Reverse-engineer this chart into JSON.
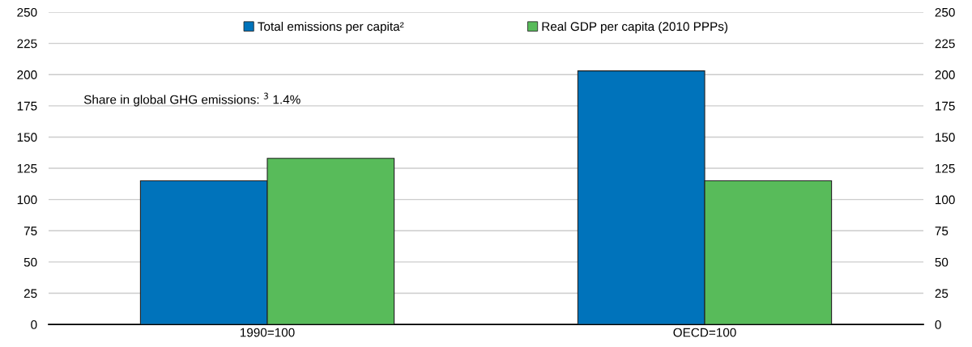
{
  "chart_data": {
    "type": "bar",
    "categories": [
      "1990=100",
      "OECD=100"
    ],
    "series": [
      {
        "name": "Total emissions per capita²",
        "color": "#0073bb",
        "values": [
          115,
          203
        ]
      },
      {
        "name": "Real GDP per capita (2010 PPPs)",
        "color": "#58bb5a",
        "values": [
          133,
          115
        ]
      }
    ],
    "ylim": [
      0,
      250
    ],
    "yticks": [
      0,
      25,
      50,
      75,
      100,
      125,
      150,
      175,
      200,
      225,
      250
    ],
    "y2lim": [
      0,
      250
    ],
    "y2ticks": [
      0,
      25,
      50,
      75,
      100,
      125,
      150,
      175,
      200,
      225,
      250
    ],
    "grid": "y",
    "legend": "top",
    "annotations": [
      "Share in global GHG emissions: $^{3}$ 1.4%"
    ]
  }
}
